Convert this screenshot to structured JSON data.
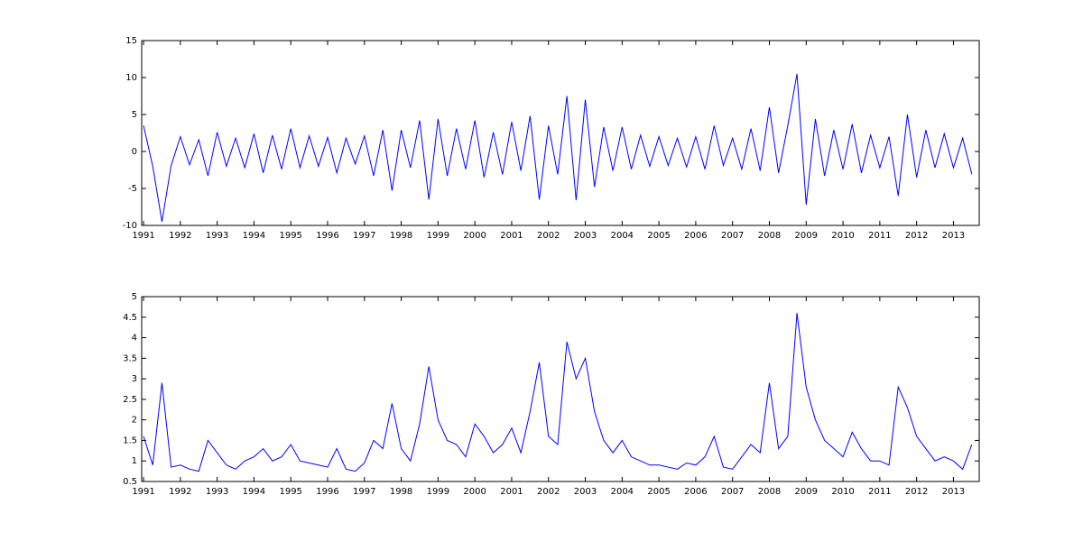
{
  "chart_data": [
    {
      "type": "line",
      "x": [
        1991,
        1991.25,
        1991.5,
        1991.75,
        1992,
        1992.25,
        1992.5,
        1992.75,
        1993,
        1993.25,
        1993.5,
        1993.75,
        1994,
        1994.25,
        1994.5,
        1994.75,
        1995,
        1995.25,
        1995.5,
        1995.75,
        1996,
        1996.25,
        1996.5,
        1996.75,
        1997,
        1997.25,
        1997.5,
        1997.75,
        1998,
        1998.25,
        1998.5,
        1998.75,
        1999,
        1999.25,
        1999.5,
        1999.75,
        2000,
        2000.25,
        2000.5,
        2000.75,
        2001,
        2001.25,
        2001.5,
        2001.75,
        2002,
        2002.25,
        2002.5,
        2002.75,
        2003,
        2003.25,
        2003.5,
        2003.75,
        2004,
        2004.25,
        2004.5,
        2004.75,
        2005,
        2005.25,
        2005.5,
        2005.75,
        2006,
        2006.25,
        2006.5,
        2006.75,
        2007,
        2007.25,
        2007.5,
        2007.75,
        2008,
        2008.25,
        2008.5,
        2008.75,
        2009,
        2009.25,
        2009.5,
        2009.75,
        2010,
        2010.25,
        2010.5,
        2010.75,
        2011,
        2011.25,
        2011.5,
        2011.75,
        2012,
        2012.25,
        2012.5,
        2012.75,
        2013,
        2013.25,
        2013.5
      ],
      "series": [
        {
          "color": "#0000ff",
          "values": [
            3.5,
            -2,
            -9.5,
            -1.9,
            2,
            -1.8,
            1.6,
            -3.3,
            2.6,
            -2,
            1.8,
            -2.2,
            2.4,
            -2.9,
            2.2,
            -2.4,
            3.1,
            -2.2,
            2.1,
            -2,
            1.9,
            -2.9,
            1.8,
            -1.7,
            2.1,
            -3.3,
            2.9,
            -5.3,
            2.9,
            -2.2,
            4.2,
            -6.5,
            4.4,
            -3.3,
            3.1,
            -2.4,
            4.2,
            -3.5,
            2.6,
            -3.1,
            4,
            -2.6,
            4.8,
            -6.5,
            3.5,
            -3.1,
            7.5,
            -6.6,
            7,
            -4.8,
            3.3,
            -2.6,
            3.3,
            -2.4,
            2.2,
            -2,
            2,
            -1.9,
            1.8,
            -2.1,
            2,
            -2.4,
            3.5,
            -1.9,
            1.8,
            -2.4,
            3.1,
            -2.6,
            6,
            -2.9,
            3.5,
            10.5,
            -7.2,
            4.4,
            -3.3,
            2.9,
            -2.4,
            3.7,
            -2.9,
            2.2,
            -2.2,
            2,
            -6,
            5,
            -3.5,
            2.9,
            -2.2,
            2.4,
            -2.2,
            1.8,
            -3.1
          ]
        }
      ],
      "xlim": [
        1990.95,
        2013.7
      ],
      "xticks": [
        1991,
        1992,
        1993,
        1994,
        1995,
        1996,
        1997,
        1998,
        1999,
        2000,
        2001,
        2002,
        2003,
        2004,
        2005,
        2006,
        2007,
        2008,
        2009,
        2010,
        2011,
        2012,
        2013
      ],
      "ylim": [
        -10,
        15
      ],
      "yticks": [
        -10,
        -5,
        0,
        5,
        10,
        15
      ]
    },
    {
      "type": "line",
      "x": [
        1991,
        1991.25,
        1991.5,
        1991.75,
        1992,
        1992.25,
        1992.5,
        1992.75,
        1993,
        1993.25,
        1993.5,
        1993.75,
        1994,
        1994.25,
        1994.5,
        1994.75,
        1995,
        1995.25,
        1995.5,
        1995.75,
        1996,
        1996.25,
        1996.5,
        1996.75,
        1997,
        1997.25,
        1997.5,
        1997.75,
        1998,
        1998.25,
        1998.5,
        1998.75,
        1999,
        1999.25,
        1999.5,
        1999.75,
        2000,
        2000.25,
        2000.5,
        2000.75,
        2001,
        2001.25,
        2001.5,
        2001.75,
        2002,
        2002.25,
        2002.5,
        2002.75,
        2003,
        2003.25,
        2003.5,
        2003.75,
        2004,
        2004.25,
        2004.5,
        2004.75,
        2005,
        2005.25,
        2005.5,
        2005.75,
        2006,
        2006.25,
        2006.5,
        2006.75,
        2007,
        2007.25,
        2007.5,
        2007.75,
        2008,
        2008.25,
        2008.5,
        2008.75,
        2009,
        2009.25,
        2009.5,
        2009.75,
        2010,
        2010.25,
        2010.5,
        2010.75,
        2011,
        2011.25,
        2011.5,
        2011.75,
        2012,
        2012.25,
        2012.5,
        2012.75,
        2013,
        2013.25,
        2013.5
      ],
      "series": [
        {
          "color": "#0000ff",
          "values": [
            1.6,
            0.9,
            2.9,
            0.85,
            0.9,
            0.8,
            0.75,
            1.5,
            1.2,
            0.9,
            0.8,
            1.0,
            1.1,
            1.3,
            1.0,
            1.1,
            1.4,
            1.0,
            0.95,
            0.9,
            0.85,
            1.3,
            0.8,
            0.75,
            0.95,
            1.5,
            1.3,
            2.4,
            1.3,
            1.0,
            1.9,
            3.3,
            2.0,
            1.5,
            1.4,
            1.1,
            1.9,
            1.6,
            1.2,
            1.4,
            1.8,
            1.2,
            2.2,
            3.4,
            1.6,
            1.4,
            3.9,
            3.0,
            3.5,
            2.2,
            1.5,
            1.2,
            1.5,
            1.1,
            1.0,
            0.9,
            0.9,
            0.85,
            0.8,
            0.95,
            0.9,
            1.1,
            1.6,
            0.85,
            0.8,
            1.1,
            1.4,
            1.2,
            2.9,
            1.3,
            1.6,
            4.6,
            2.8,
            2.0,
            1.5,
            1.3,
            1.1,
            1.7,
            1.3,
            1.0,
            1.0,
            0.9,
            2.8,
            2.3,
            1.6,
            1.3,
            1.0,
            1.1,
            1.0,
            0.8,
            1.4
          ]
        }
      ],
      "xlim": [
        1990.95,
        2013.7
      ],
      "xticks": [
        1991,
        1992,
        1993,
        1994,
        1995,
        1996,
        1997,
        1998,
        1999,
        2000,
        2001,
        2002,
        2003,
        2004,
        2005,
        2006,
        2007,
        2008,
        2009,
        2010,
        2011,
        2012,
        2013
      ],
      "ylim": [
        0.5,
        5
      ],
      "yticks": [
        0.5,
        1,
        1.5,
        2,
        2.5,
        3,
        3.5,
        4,
        4.5,
        5
      ]
    }
  ]
}
